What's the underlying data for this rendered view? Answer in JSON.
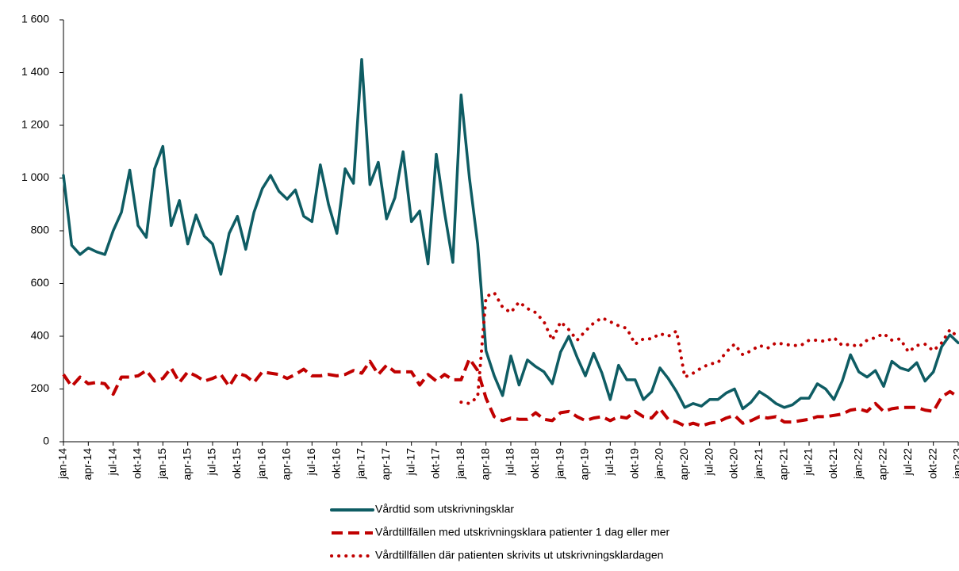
{
  "chart_data": {
    "type": "line",
    "categories": [
      "jan-14",
      null,
      null,
      "apr-14",
      null,
      null,
      "jul-14",
      null,
      null,
      "okt-14",
      null,
      null,
      "jan-15",
      null,
      null,
      "apr-15",
      null,
      null,
      "jul-15",
      null,
      null,
      "okt-15",
      null,
      null,
      "jan-16",
      null,
      null,
      "apr-16",
      null,
      null,
      "jul-16",
      null,
      null,
      "okt-16",
      null,
      null,
      "jan-17",
      null,
      null,
      "apr-17",
      null,
      null,
      "jul-17",
      null,
      null,
      "okt-17",
      null,
      null,
      "jan-18",
      null,
      null,
      "apr-18",
      null,
      null,
      "jul-18",
      null,
      null,
      "okt-18",
      null,
      null,
      "jan-19",
      null,
      null,
      "apr-19",
      null,
      null,
      "jul-19",
      null,
      null,
      "okt-19",
      null,
      null,
      "jan-20",
      null,
      null,
      "apr-20",
      null,
      null,
      "jul-20",
      null,
      null,
      "okt-20",
      null,
      null,
      "jan-21",
      null,
      null,
      "apr-21",
      null,
      null,
      "jul-21",
      null,
      null,
      "okt-21",
      null,
      null,
      "jan-22",
      null,
      null,
      "apr-22",
      null,
      null,
      "jul-22",
      null,
      null,
      "okt-22",
      null,
      null,
      "jan-23"
    ],
    "series": [
      {
        "name": "Vårdtid som utskrivningsklar",
        "color": "#0e5c63",
        "dash": "solid",
        "values": [
          1010,
          745,
          710,
          735,
          720,
          710,
          800,
          870,
          1030,
          820,
          775,
          1035,
          1120,
          820,
          915,
          750,
          860,
          780,
          750,
          635,
          790,
          855,
          730,
          870,
          960,
          1010,
          950,
          920,
          955,
          855,
          835,
          1050,
          900,
          790,
          1035,
          980,
          1450,
          975,
          1060,
          845,
          925,
          1100,
          835,
          875,
          675,
          1090,
          870,
          680,
          1315,
          1000,
          750,
          345,
          250,
          175,
          325,
          215,
          310,
          285,
          265,
          220,
          340,
          400,
          320,
          250,
          335,
          260,
          160,
          290,
          235,
          235,
          160,
          190,
          280,
          240,
          190,
          130,
          145,
          135,
          160,
          160,
          185,
          200,
          125,
          150,
          190,
          170,
          145,
          130,
          140,
          165,
          165,
          220,
          200,
          160,
          230,
          330,
          265,
          245,
          270,
          210,
          305,
          280,
          270,
          300,
          230,
          265,
          360,
          405,
          375
        ]
      },
      {
        "name": "Vårdtillfällen med utskrivningsklara patienter 1 dag eller mer",
        "color": "#c00000",
        "dash": "dashed",
        "values": [
          255,
          210,
          245,
          220,
          225,
          220,
          180,
          245,
          245,
          250,
          270,
          230,
          240,
          280,
          225,
          265,
          250,
          230,
          240,
          255,
          210,
          260,
          250,
          225,
          265,
          260,
          255,
          240,
          255,
          275,
          250,
          250,
          255,
          250,
          255,
          270,
          260,
          305,
          255,
          290,
          265,
          265,
          265,
          215,
          255,
          230,
          255,
          235,
          235,
          315,
          270,
          165,
          95,
          80,
          90,
          85,
          85,
          110,
          85,
          80,
          110,
          115,
          95,
          80,
          90,
          95,
          80,
          95,
          90,
          115,
          95,
          90,
          125,
          85,
          75,
          60,
          70,
          60,
          70,
          75,
          90,
          100,
          70,
          80,
          95,
          90,
          95,
          75,
          75,
          80,
          85,
          95,
          95,
          100,
          105,
          120,
          125,
          115,
          145,
          115,
          125,
          130,
          130,
          130,
          120,
          115,
          170,
          190,
          170
        ]
      },
      {
        "name": "Vårdtillfällen där patienten skrivits ut utskrivningsklardagen",
        "color": "#c00000",
        "dash": "dotted",
        "values": [
          null,
          null,
          null,
          null,
          null,
          null,
          null,
          null,
          null,
          null,
          null,
          null,
          null,
          null,
          null,
          null,
          null,
          null,
          null,
          null,
          null,
          null,
          null,
          null,
          null,
          null,
          null,
          null,
          null,
          null,
          null,
          null,
          null,
          null,
          null,
          null,
          null,
          null,
          null,
          null,
          null,
          null,
          null,
          null,
          null,
          null,
          null,
          null,
          150,
          145,
          170,
          550,
          565,
          510,
          490,
          530,
          505,
          490,
          455,
          385,
          455,
          425,
          385,
          420,
          450,
          470,
          455,
          440,
          430,
          370,
          390,
          390,
          410,
          400,
          420,
          245,
          260,
          280,
          295,
          300,
          340,
          370,
          330,
          345,
          365,
          355,
          375,
          370,
          365,
          365,
          385,
          385,
          380,
          395,
          365,
          370,
          360,
          385,
          395,
          410,
          385,
          390,
          340,
          365,
          370,
          345,
          375,
          425,
          395
        ]
      }
    ],
    "ylim": [
      0,
      1600
    ],
    "yticks": [
      0,
      200,
      400,
      600,
      800,
      {
        "value": 1000,
        "label": "1 000"
      },
      {
        "value": 1200,
        "label": "1 200"
      },
      {
        "value": 1400,
        "label": "1 400"
      },
      {
        "value": 1600,
        "label": "1 600"
      }
    ],
    "grid": false,
    "legend": "bottom"
  }
}
